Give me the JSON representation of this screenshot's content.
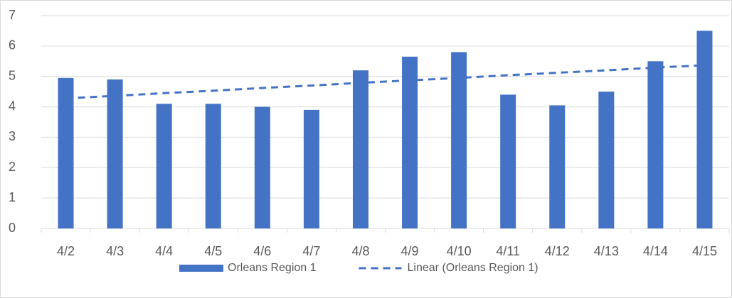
{
  "chart_data": {
    "type": "bar",
    "categories": [
      "4/2",
      "4/3",
      "4/4",
      "4/5",
      "4/6",
      "4/7",
      "4/8",
      "4/9",
      "4/10",
      "4/11",
      "4/12",
      "4/13",
      "4/14",
      "4/15"
    ],
    "series": [
      {
        "name": "Orleans Region 1",
        "type": "bar",
        "color": "#4472c4",
        "values": [
          4.95,
          4.9,
          4.1,
          4.1,
          4.0,
          3.9,
          5.2,
          5.65,
          5.8,
          4.4,
          4.05,
          4.5,
          5.5,
          6.5
        ]
      },
      {
        "name": "Linear (Orleans Region 1)",
        "type": "line",
        "dashed": true,
        "color": "#4472c4",
        "values": [
          4.28,
          4.36,
          4.45,
          4.53,
          4.62,
          4.7,
          4.79,
          4.87,
          4.95,
          5.04,
          5.12,
          5.2,
          5.29,
          5.37
        ]
      }
    ],
    "ylim": [
      0,
      7
    ],
    "yticks": [
      0,
      1,
      2,
      3,
      4,
      5,
      6,
      7
    ],
    "grid": true,
    "legend": "bottom"
  }
}
